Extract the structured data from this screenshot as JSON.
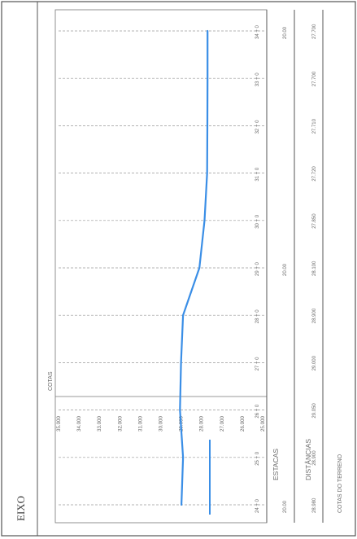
{
  "title": "EIXO",
  "profile_legend_label": "",
  "colors": {
    "profile": "#3a8ee6",
    "border": "#555555",
    "grid": "#9a9a9a",
    "text": "#6a6a6a"
  },
  "labels": {
    "cotas": "COTAS",
    "estacas": "ESTACAS",
    "distancias": "DISTÂNCIAS",
    "elevations": "COTAS DO TERRENO"
  },
  "chart_data": {
    "type": "line",
    "title": "EIXO",
    "xlabel": "ESTACAS",
    "ylabel": "COTAS",
    "ylim": [
      25.0,
      35.0
    ],
    "y_ticks": [
      "35.000",
      "34.000",
      "33.000",
      "32.000",
      "31.000",
      "30.000",
      "29.000",
      "28.000",
      "27.000",
      "26.000",
      "25.000"
    ],
    "stations": [
      "24 + 0",
      "25 + 0",
      "26 + 0",
      "27 + 0",
      "28 + 0",
      "29 + 0",
      "30 + 0",
      "31 + 0",
      "32 + 0",
      "33 + 0",
      "34 + 0"
    ],
    "distances": [
      "20.00",
      "",
      "",
      "",
      "",
      "20.00",
      "",
      "",
      "",
      "",
      "20.00"
    ],
    "series": [
      {
        "name": "",
        "values": [
          28.98,
          28.9,
          29.05,
          29.0,
          28.9,
          28.1,
          27.85,
          27.72,
          27.71,
          27.7,
          27.7
        ]
      }
    ],
    "grid": true
  }
}
